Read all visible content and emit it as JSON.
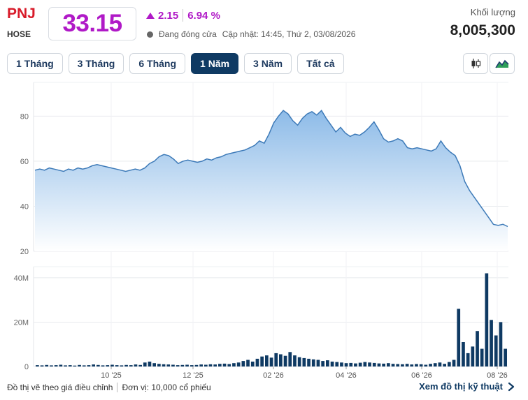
{
  "stock": {
    "ticker": "PNJ",
    "exchange": "HOSE",
    "price": "33.15",
    "change": "2.15",
    "change_percent": "6.94 %",
    "status": "Đang đóng cửa",
    "updated": "Cập nhật: 14:45, Thứ 2, 03/08/2026",
    "volume_label": "Khối lượng",
    "volume": "8,005,300",
    "price_color": "#b019c7"
  },
  "range_tabs": [
    {
      "label": "1 Tháng",
      "active": false
    },
    {
      "label": "3 Tháng",
      "active": false
    },
    {
      "label": "6 Tháng",
      "active": false
    },
    {
      "label": "1 Năm",
      "active": true
    },
    {
      "label": "3 Năm",
      "active": false
    },
    {
      "label": "Tất cả",
      "active": false
    }
  ],
  "tools": {
    "candlestick": "candlestick-icon",
    "area": "area-chart-icon"
  },
  "footer": {
    "adjusted_note": "Đồ thị vẽ theo giá điều chỉnh",
    "unit_note": "Đơn vị: 10,000 cổ phiếu",
    "link_label": "Xem đồ thị kỹ thuật"
  },
  "chart_data": {
    "type": "area",
    "x_ticks": [
      "10 '25",
      "12 '25",
      "02 '26",
      "04 '26",
      "06 '26",
      "08 '26"
    ],
    "price": {
      "y_ticks": [
        20,
        40,
        60,
        80
      ],
      "ylim": [
        20,
        95
      ],
      "values": [
        56,
        56.5,
        56,
        57,
        56.5,
        56,
        55.5,
        56.5,
        56,
        57,
        56.5,
        57,
        58,
        58.5,
        58,
        57.5,
        57,
        56.5,
        56,
        55.5,
        56,
        56.5,
        56,
        57,
        59,
        60,
        62,
        63,
        62.5,
        61,
        59,
        60,
        60.5,
        60,
        59.5,
        60,
        61,
        60.5,
        61.5,
        62,
        63,
        63.5,
        64,
        64.5,
        65,
        66,
        67,
        69,
        68,
        72,
        77,
        80,
        82.5,
        81,
        78,
        76,
        79,
        81,
        82,
        80.5,
        82.5,
        79,
        76,
        73,
        75,
        72.5,
        71,
        72,
        71.5,
        73,
        75,
        77.5,
        74,
        70,
        68.5,
        69,
        70,
        69,
        66,
        65.5,
        66,
        65.5,
        65,
        64.5,
        65.5,
        69,
        66,
        64,
        62.5,
        58,
        51,
        47,
        44,
        41,
        38,
        35,
        32,
        31.5,
        32,
        31
      ],
      "color": "#3d7ab8",
      "fill_top": "#8dbbe8",
      "fill_bottom": "#ffffff"
    },
    "volume": {
      "y_ticks": [
        "0",
        "20M",
        "40M"
      ],
      "ylim": [
        0,
        45
      ],
      "values": [
        0.6,
        0.5,
        0.7,
        0.5,
        0.6,
        0.8,
        0.5,
        0.6,
        0.4,
        0.7,
        0.5,
        0.6,
        0.9,
        0.7,
        0.5,
        0.6,
        0.8,
        0.6,
        0.5,
        0.7,
        0.6,
        0.9,
        0.7,
        1.8,
        2.2,
        1.5,
        1.2,
        1.0,
        0.9,
        0.8,
        0.6,
        0.7,
        0.8,
        0.6,
        0.7,
        0.9,
        0.8,
        1.0,
        0.9,
        1.2,
        1.3,
        1.1,
        1.5,
        1.8,
        2.5,
        3.0,
        2.2,
        3.5,
        4.5,
        5.0,
        4.0,
        6.0,
        5.5,
        4.8,
        6.5,
        5.0,
        4.2,
        3.8,
        3.5,
        3.2,
        3.0,
        2.5,
        2.8,
        2.2,
        2.0,
        1.8,
        1.5,
        1.6,
        1.4,
        1.7,
        2.0,
        1.8,
        1.6,
        1.4,
        1.3,
        1.5,
        1.2,
        1.1,
        1.0,
        1.2,
        0.9,
        1.1,
        1.0,
        0.8,
        1.2,
        1.5,
        1.8,
        1.2,
        2.0,
        3.0,
        26.0,
        11.0,
        6.0,
        9.0,
        16.0,
        8.0,
        42.0,
        21.0,
        14.0,
        20.0,
        8.0
      ],
      "color": "#0f3a63"
    },
    "grid": true
  }
}
